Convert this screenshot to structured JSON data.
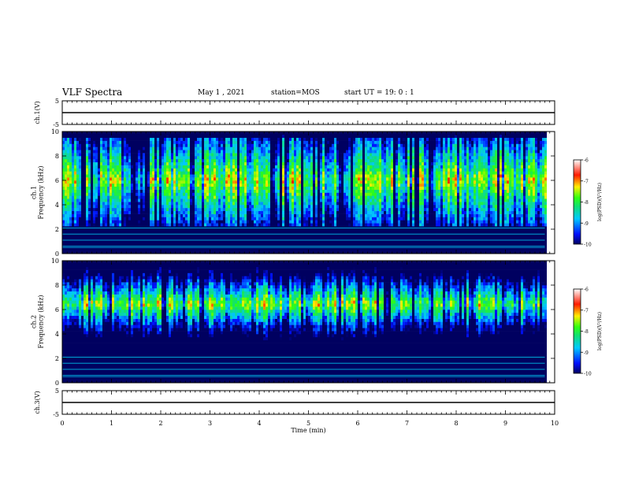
{
  "header": {
    "title": "VLF Spectra",
    "date": "May 1 , 2021",
    "station": "station=MOS",
    "start": "start  UT =  19: 0  : 1"
  },
  "colorbar": {
    "label": "log(PSD)(V²/Hz)",
    "ticks": [
      "-6",
      "-7",
      "-8",
      "-9",
      "-10"
    ]
  },
  "chart_data": [
    {
      "type": "line",
      "name": "ch1-voltage",
      "ylabel": "ch.1(V)",
      "ylim": [
        -5,
        5
      ],
      "yticks": [
        "5",
        "-5"
      ],
      "xlim": [
        0,
        10
      ],
      "x": [
        0,
        10
      ],
      "values": [
        0,
        0
      ]
    },
    {
      "type": "heatmap",
      "name": "ch1-spectrogram",
      "ylabel": "ch.1\nFrequency (kHz)",
      "ylim": [
        0,
        10
      ],
      "yticks": [
        "0",
        "2",
        "4",
        "6",
        "8",
        "10"
      ],
      "xlim": [
        0,
        10
      ],
      "zlim": [
        -10,
        -6
      ],
      "data_end_min": 9.8,
      "intense_band_khz": [
        3,
        9
      ]
    },
    {
      "type": "heatmap",
      "name": "ch2-spectrogram",
      "ylabel": "ch.2\nFrequency (kHz)",
      "ylim": [
        0,
        10
      ],
      "yticks": [
        "0",
        "2",
        "4",
        "6",
        "8",
        "10"
      ],
      "xlim": [
        0,
        10
      ],
      "zlim": [
        -10,
        -6
      ],
      "data_end_min": 9.8,
      "intense_band_khz": [
        5,
        8
      ]
    },
    {
      "type": "line",
      "name": "ch3-voltage",
      "ylabel": "ch.3(V)",
      "ylim": [
        -5,
        5
      ],
      "yticks": [
        "5",
        "-5"
      ],
      "xlim": [
        0,
        10
      ],
      "x": [
        0,
        10
      ],
      "values": [
        0,
        0
      ],
      "xlabel": "Time (min)",
      "xticks": [
        "0",
        "1",
        "2",
        "3",
        "4",
        "5",
        "6",
        "7",
        "8",
        "9",
        "10"
      ]
    }
  ],
  "colors": {
    "low": "#00007a",
    "mid": "#00d2ff",
    "green": "#22dd22",
    "yellow": "#ffe000",
    "high": "#ff1a00"
  }
}
